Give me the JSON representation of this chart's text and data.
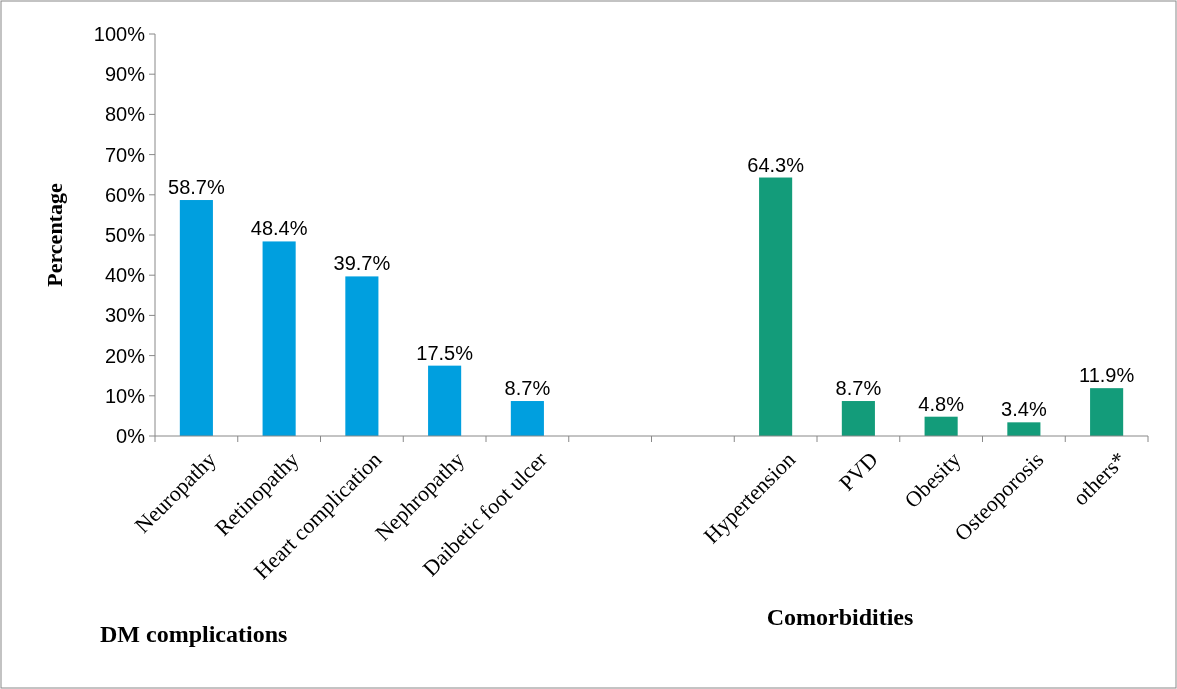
{
  "chart_data": {
    "type": "bar",
    "ylabel": "Percentage",
    "categories": [
      "Neuropathy",
      "Retinopathy",
      "Heart complication",
      "Nephropathy",
      "Daibetic foot ulcer",
      null,
      null,
      "Hypertension",
      "PVD",
      "Obesity",
      "Osteoporosis",
      "others*"
    ],
    "values": [
      58.7,
      48.4,
      39.7,
      17.5,
      8.7,
      null,
      null,
      64.3,
      8.7,
      4.8,
      3.4,
      11.9
    ],
    "colors": [
      "#009fdf",
      "#009fdf",
      "#009fdf",
      "#009fdf",
      "#009fdf",
      null,
      null,
      "#139c7a",
      "#139c7a",
      "#139c7a",
      "#139c7a",
      "#139c7a"
    ],
    "value_labels": [
      "58.7%",
      "48.4%",
      "39.7%",
      "17.5%",
      "8.7%",
      null,
      null,
      "64.3%",
      "8.7%",
      "4.8%",
      "3.4%",
      "11.9%"
    ],
    "ylim": [
      0,
      100
    ],
    "yticks": [
      {
        "value": 0,
        "label": "0%"
      },
      {
        "value": 10,
        "label": "10%"
      },
      {
        "value": 20,
        "label": "20%"
      },
      {
        "value": 30,
        "label": "30%"
      },
      {
        "value": 40,
        "label": "40%"
      },
      {
        "value": 50,
        "label": "50%"
      },
      {
        "value": 60,
        "label": "60%"
      },
      {
        "value": 70,
        "label": "70%"
      },
      {
        "value": 80,
        "label": "80%"
      },
      {
        "value": 90,
        "label": "90%"
      },
      {
        "value": 100,
        "label": "100%"
      }
    ],
    "annotations": [
      "DM complications",
      "Comorbidities"
    ]
  }
}
